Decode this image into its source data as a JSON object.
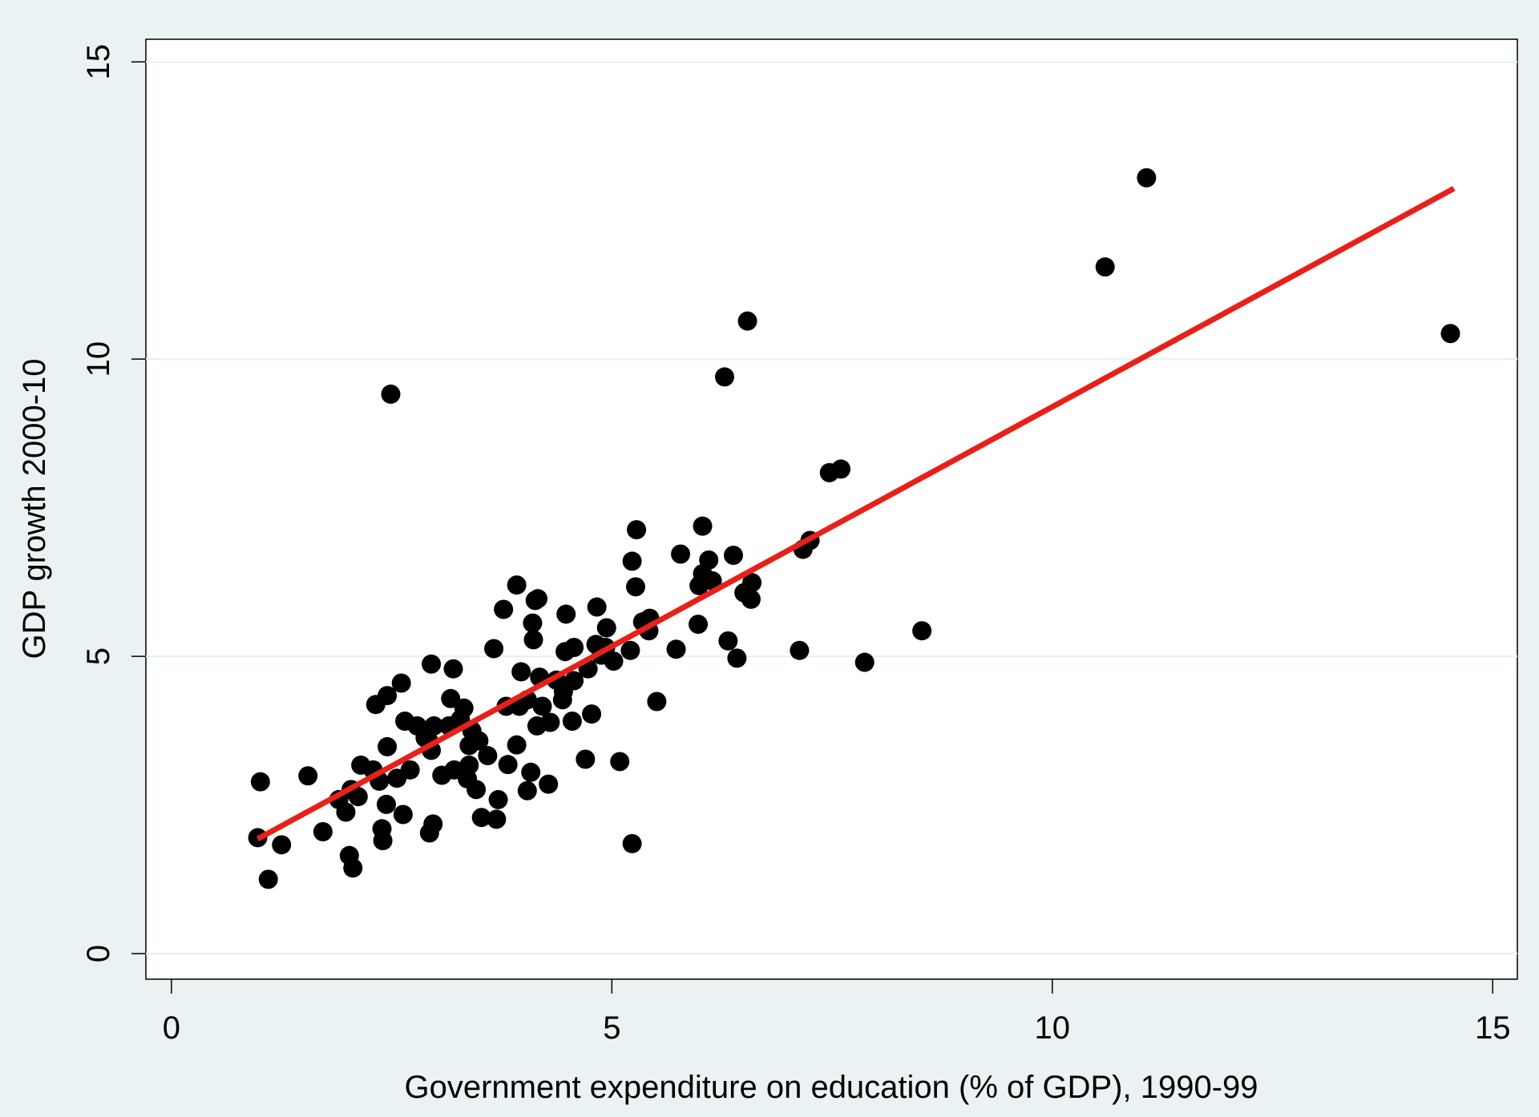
{
  "chart_data": {
    "type": "scatter",
    "xlabel": "Government expenditure on education (% of GDP), 1990-99",
    "ylabel": "GDP growth 2000-10",
    "xlim": [
      -0.29,
      15.28
    ],
    "ylim": [
      -0.43,
      15.38
    ],
    "xticks": [
      0,
      5,
      10,
      15
    ],
    "yticks": [
      0,
      5,
      10,
      15
    ],
    "grid": true,
    "points": {
      "color": "#000000",
      "x": [
        1.01,
        0.98,
        1.1,
        1.25,
        1.55,
        1.72,
        2.02,
        2.06,
        1.9,
        1.98,
        2.04,
        2.15,
        2.32,
        2.45,
        2.29,
        2.36,
        2.39,
        2.4,
        2.45,
        2.49,
        2.44,
        2.56,
        2.61,
        2.63,
        2.65,
        2.71,
        2.79,
        2.88,
        2.93,
        2.95,
        2.97,
        2.98,
        2.95,
        3.07,
        3.17,
        3.2,
        3.15,
        3.21,
        3.28,
        3.32,
        3.36,
        3.38,
        3.41,
        3.46,
        3.49,
        3.52,
        3.59,
        3.66,
        3.69,
        3.71,
        3.77,
        3.8,
        3.82,
        3.92,
        3.92,
        3.97,
        4.04,
        4.04,
        4.08,
        4.1,
        4.11,
        4.13,
        4.16,
        4.15,
        4.18,
        4.21,
        4.28,
        4.3,
        4.37,
        4.44,
        4.48,
        4.47,
        4.55,
        4.57,
        4.57,
        4.7,
        4.73,
        4.77,
        4.83,
        4.82,
        4.88,
        4.94,
        5.02,
        5.09,
        5.21,
        5.23,
        5.23,
        5.27,
        5.28,
        5.35,
        5.42,
        5.43,
        5.51,
        5.73,
        5.78,
        5.98,
        5.99,
        6.03,
        6.03,
        6.1,
        6.14,
        6.28,
        6.32,
        6.38,
        6.42,
        6.5,
        6.54,
        6.58,
        6.59,
        7.13,
        7.17,
        7.25,
        7.47,
        7.6,
        7.87,
        8.52,
        10.6,
        11.07,
        14.52,
        3.95,
        3.38,
        2.92,
        2.12,
        4.45,
        4.93
      ],
      "y": [
        2.89,
        1.95,
        1.25,
        1.83,
        2.99,
        2.05,
        1.65,
        1.44,
        2.59,
        2.38,
        2.76,
        3.17,
        4.19,
        4.34,
        3.09,
        2.9,
        2.1,
        1.9,
        3.48,
        9.41,
        2.51,
        2.95,
        4.55,
        2.34,
        3.91,
        3.09,
        3.83,
        3.63,
        2.03,
        4.87,
        2.18,
        3.83,
        3.42,
        3.0,
        4.29,
        4.79,
        3.83,
        3.09,
        3.94,
        4.13,
        2.94,
        3.17,
        3.75,
        2.76,
        3.58,
        2.29,
        3.33,
        5.13,
        2.26,
        2.59,
        5.79,
        4.16,
        3.18,
        6.2,
        3.51,
        4.74,
        4.27,
        2.74,
        3.05,
        5.56,
        5.28,
        5.94,
        5.97,
        3.83,
        4.65,
        4.16,
        2.85,
        3.89,
        4.6,
        4.27,
        5.71,
        5.08,
        3.91,
        4.59,
        5.15,
        3.27,
        4.79,
        4.03,
        5.83,
        5.2,
        5.02,
        5.48,
        4.92,
        3.23,
        5.1,
        1.85,
        6.6,
        6.17,
        7.13,
        5.58,
        5.43,
        5.64,
        4.24,
        5.12,
        6.72,
        5.54,
        6.19,
        7.19,
        6.39,
        6.62,
        6.27,
        9.7,
        5.26,
        6.7,
        4.97,
        6.07,
        10.64,
        5.96,
        6.24,
        5.1,
        6.8,
        6.95,
        8.09,
        8.15,
        4.9,
        5.43,
        11.55,
        13.05,
        10.43,
        4.16,
        3.5,
        3.58,
        2.64,
        4.41,
        5.15
      ]
    },
    "fit": {
      "color": "#e8201a",
      "x": [
        0.98,
        14.56
      ],
      "y": [
        1.93,
        12.87
      ]
    }
  }
}
